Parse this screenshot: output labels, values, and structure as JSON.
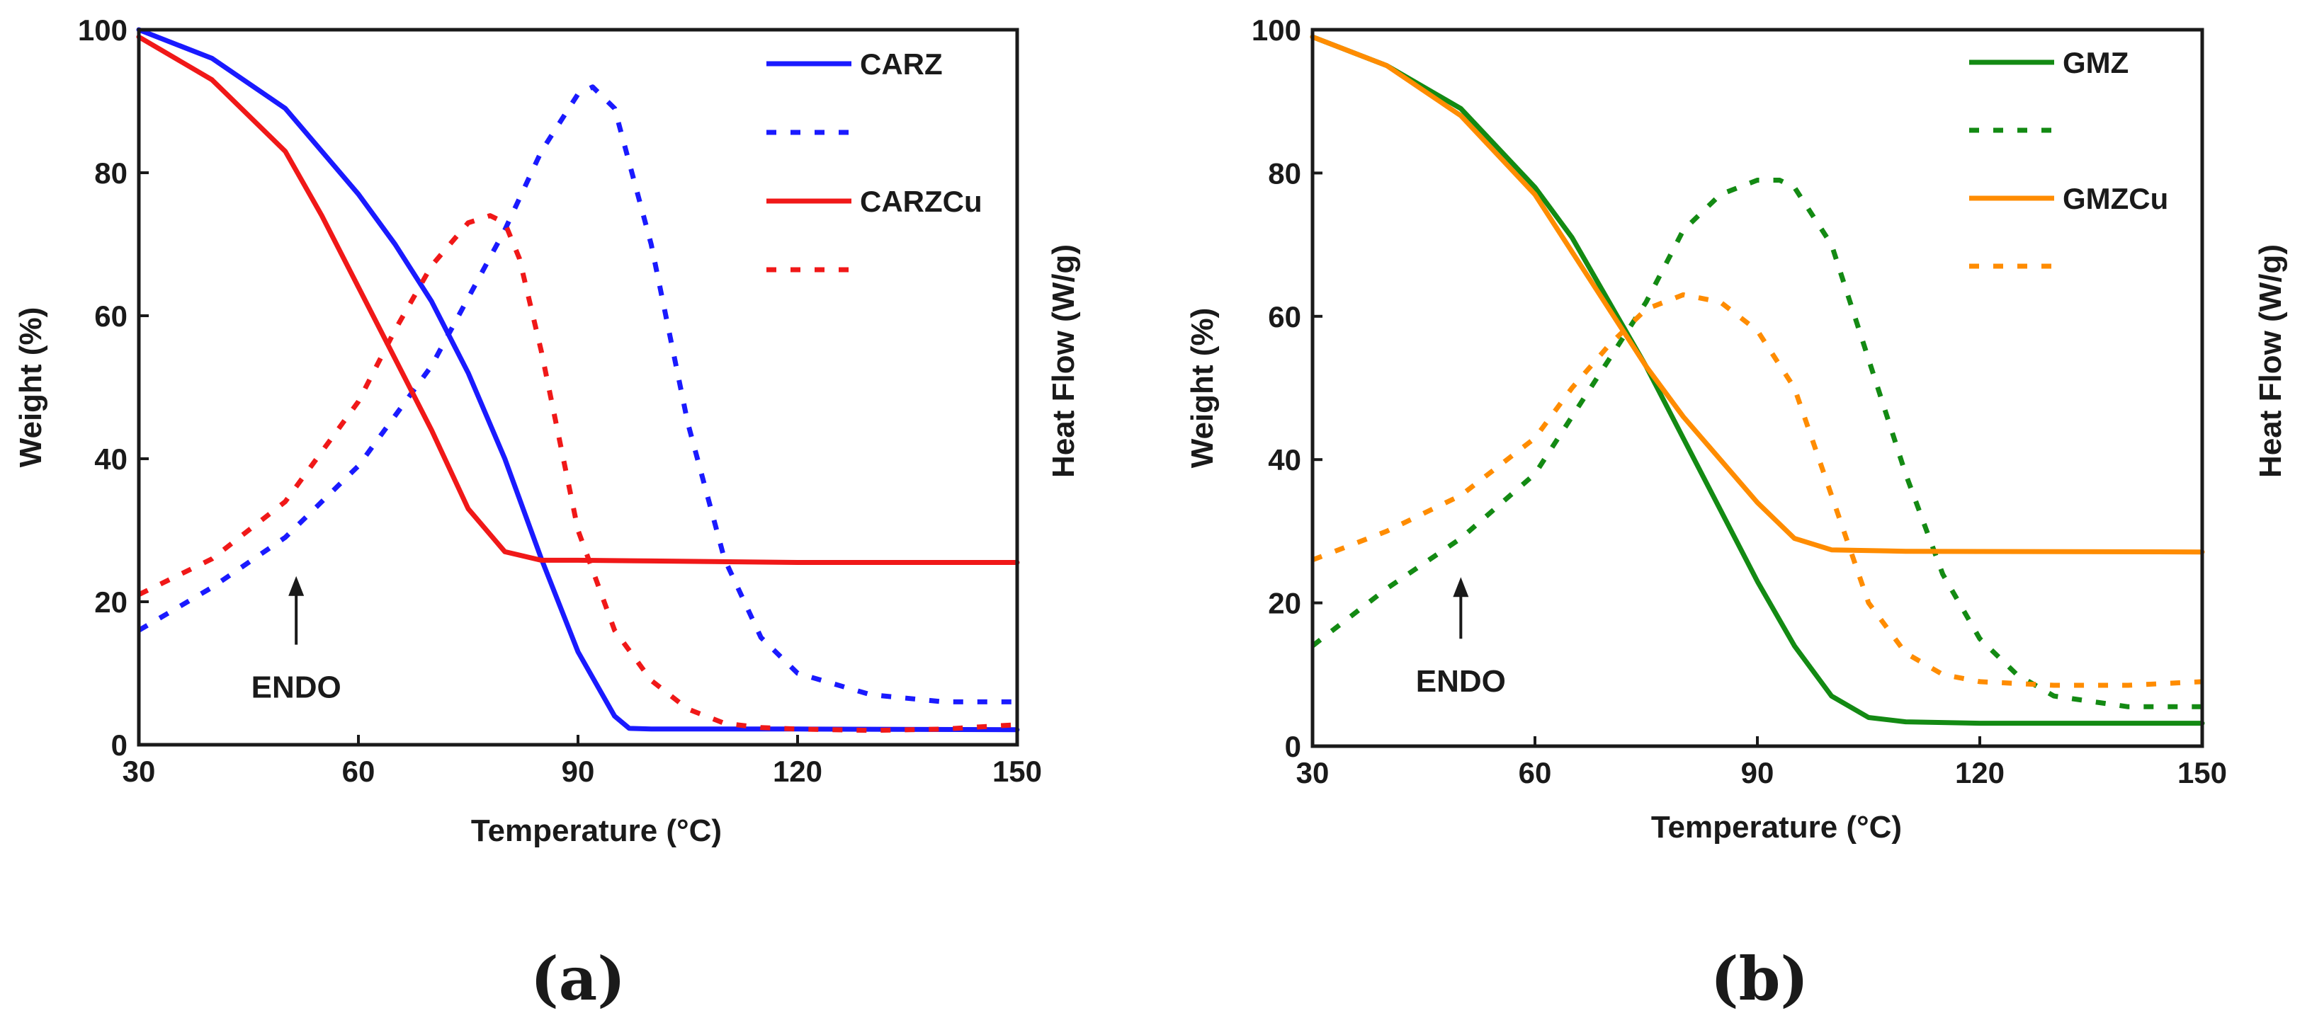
{
  "chart_data": [
    {
      "type": "line",
      "panel_label": "(a)",
      "xlabel": "Temperature (°C)",
      "ylabel": "Weight (%)",
      "ylabel_right": "Heat Flow (W/g)",
      "xlim": [
        30,
        150
      ],
      "ylim": [
        0,
        100
      ],
      "x_ticks": [
        "30",
        "60",
        "90",
        "120",
        "150"
      ],
      "y_ticks": [
        "0",
        "20",
        "40",
        "60",
        "80",
        "100"
      ],
      "grid": false,
      "legend_position": "top-right",
      "annotation": {
        "text": "ENDO",
        "arrow": "up",
        "x": 51.5,
        "y_from": 14,
        "y_to": 23
      },
      "series": [
        {
          "name": "CARZ",
          "color": "#1a1aff",
          "style": "solid",
          "x": [
            30,
            40,
            50,
            60,
            65,
            70,
            75,
            80,
            85,
            90,
            95,
            97,
            100,
            110,
            120,
            150
          ],
          "y": [
            100,
            96,
            89,
            77,
            70,
            62,
            52,
            40,
            26,
            13,
            4,
            2.3,
            2.2,
            2.2,
            2.2,
            2.1
          ]
        },
        {
          "name": "",
          "color": "#1a1aff",
          "style": "dotted",
          "x": [
            30,
            40,
            50,
            60,
            70,
            80,
            85,
            90,
            92,
            95,
            100,
            105,
            110,
            115,
            120,
            130,
            140,
            150
          ],
          "y": [
            16,
            22,
            29,
            39,
            53,
            72,
            83,
            91,
            92,
            89,
            70,
            45,
            26,
            15,
            10,
            7,
            6,
            6
          ]
        },
        {
          "name": "CARZCu",
          "color": "#f01818",
          "style": "solid",
          "x": [
            30,
            40,
            50,
            55,
            60,
            65,
            70,
            75,
            80,
            85,
            90,
            100,
            120,
            150
          ],
          "y": [
            99,
            93,
            83,
            74,
            64,
            54,
            44,
            33,
            27,
            25.8,
            25.8,
            25.7,
            25.5,
            25.5
          ]
        },
        {
          "name": "",
          "color": "#f01818",
          "style": "dotted",
          "x": [
            30,
            40,
            50,
            60,
            65,
            70,
            75,
            78,
            80,
            82,
            85,
            90,
            95,
            100,
            105,
            110,
            115,
            120,
            130,
            140,
            150
          ],
          "y": [
            21,
            26,
            34,
            48,
            58,
            67,
            73,
            74,
            73,
            68,
            55,
            30,
            16,
            9,
            5,
            3,
            2.4,
            2.2,
            2,
            2.2,
            2.8
          ]
        }
      ]
    },
    {
      "type": "line",
      "panel_label": "(b)",
      "xlabel": "Temperature (°C)",
      "ylabel": "Weight (%)",
      "ylabel_right": "Heat Flow (W/g)",
      "xlim": [
        30,
        150
      ],
      "ylim": [
        0,
        100
      ],
      "x_ticks": [
        "30",
        "60",
        "90",
        "120",
        "150"
      ],
      "y_ticks": [
        "0",
        "20",
        "40",
        "60",
        "80",
        "100"
      ],
      "grid": false,
      "legend_position": "top-right",
      "annotation": {
        "text": "ENDO",
        "arrow": "up",
        "x": 50,
        "y_from": 15,
        "y_to": 23
      },
      "series": [
        {
          "name": "GMZ",
          "color": "#138a13",
          "style": "solid",
          "x": [
            30,
            40,
            50,
            60,
            65,
            70,
            75,
            80,
            85,
            90,
            95,
            100,
            105,
            110,
            120,
            150
          ],
          "y": [
            99,
            95,
            89,
            78,
            71,
            62,
            53,
            43,
            33,
            23,
            14,
            7,
            4,
            3.4,
            3.2,
            3.2
          ]
        },
        {
          "name": "",
          "color": "#138a13",
          "style": "dotted",
          "x": [
            30,
            40,
            50,
            60,
            65,
            70,
            75,
            80,
            85,
            90,
            93,
            95,
            100,
            105,
            110,
            115,
            120,
            125,
            130,
            140,
            150
          ],
          "y": [
            14,
            22,
            29,
            38,
            46,
            54,
            62,
            72,
            77,
            79,
            79,
            78,
            70,
            54,
            38,
            24,
            15,
            10,
            7,
            5.5,
            5.5
          ]
        },
        {
          "name": "GMZCu",
          "color": "#ff8c00",
          "style": "solid",
          "x": [
            30,
            40,
            50,
            60,
            65,
            70,
            75,
            80,
            85,
            90,
            95,
            100,
            110,
            150
          ],
          "y": [
            99,
            95,
            88,
            77,
            69,
            61,
            53,
            46,
            40,
            34,
            29,
            27.4,
            27.2,
            27.1
          ]
        },
        {
          "name": "",
          "color": "#ff8c00",
          "style": "dotted",
          "x": [
            30,
            40,
            50,
            60,
            65,
            70,
            75,
            80,
            85,
            90,
            95,
            100,
            105,
            110,
            115,
            120,
            130,
            140,
            150
          ],
          "y": [
            26,
            30,
            35,
            43,
            50,
            56,
            61,
            63,
            62,
            58,
            50,
            35,
            20,
            13,
            10,
            9,
            8.5,
            8.5,
            9
          ]
        }
      ]
    }
  ]
}
